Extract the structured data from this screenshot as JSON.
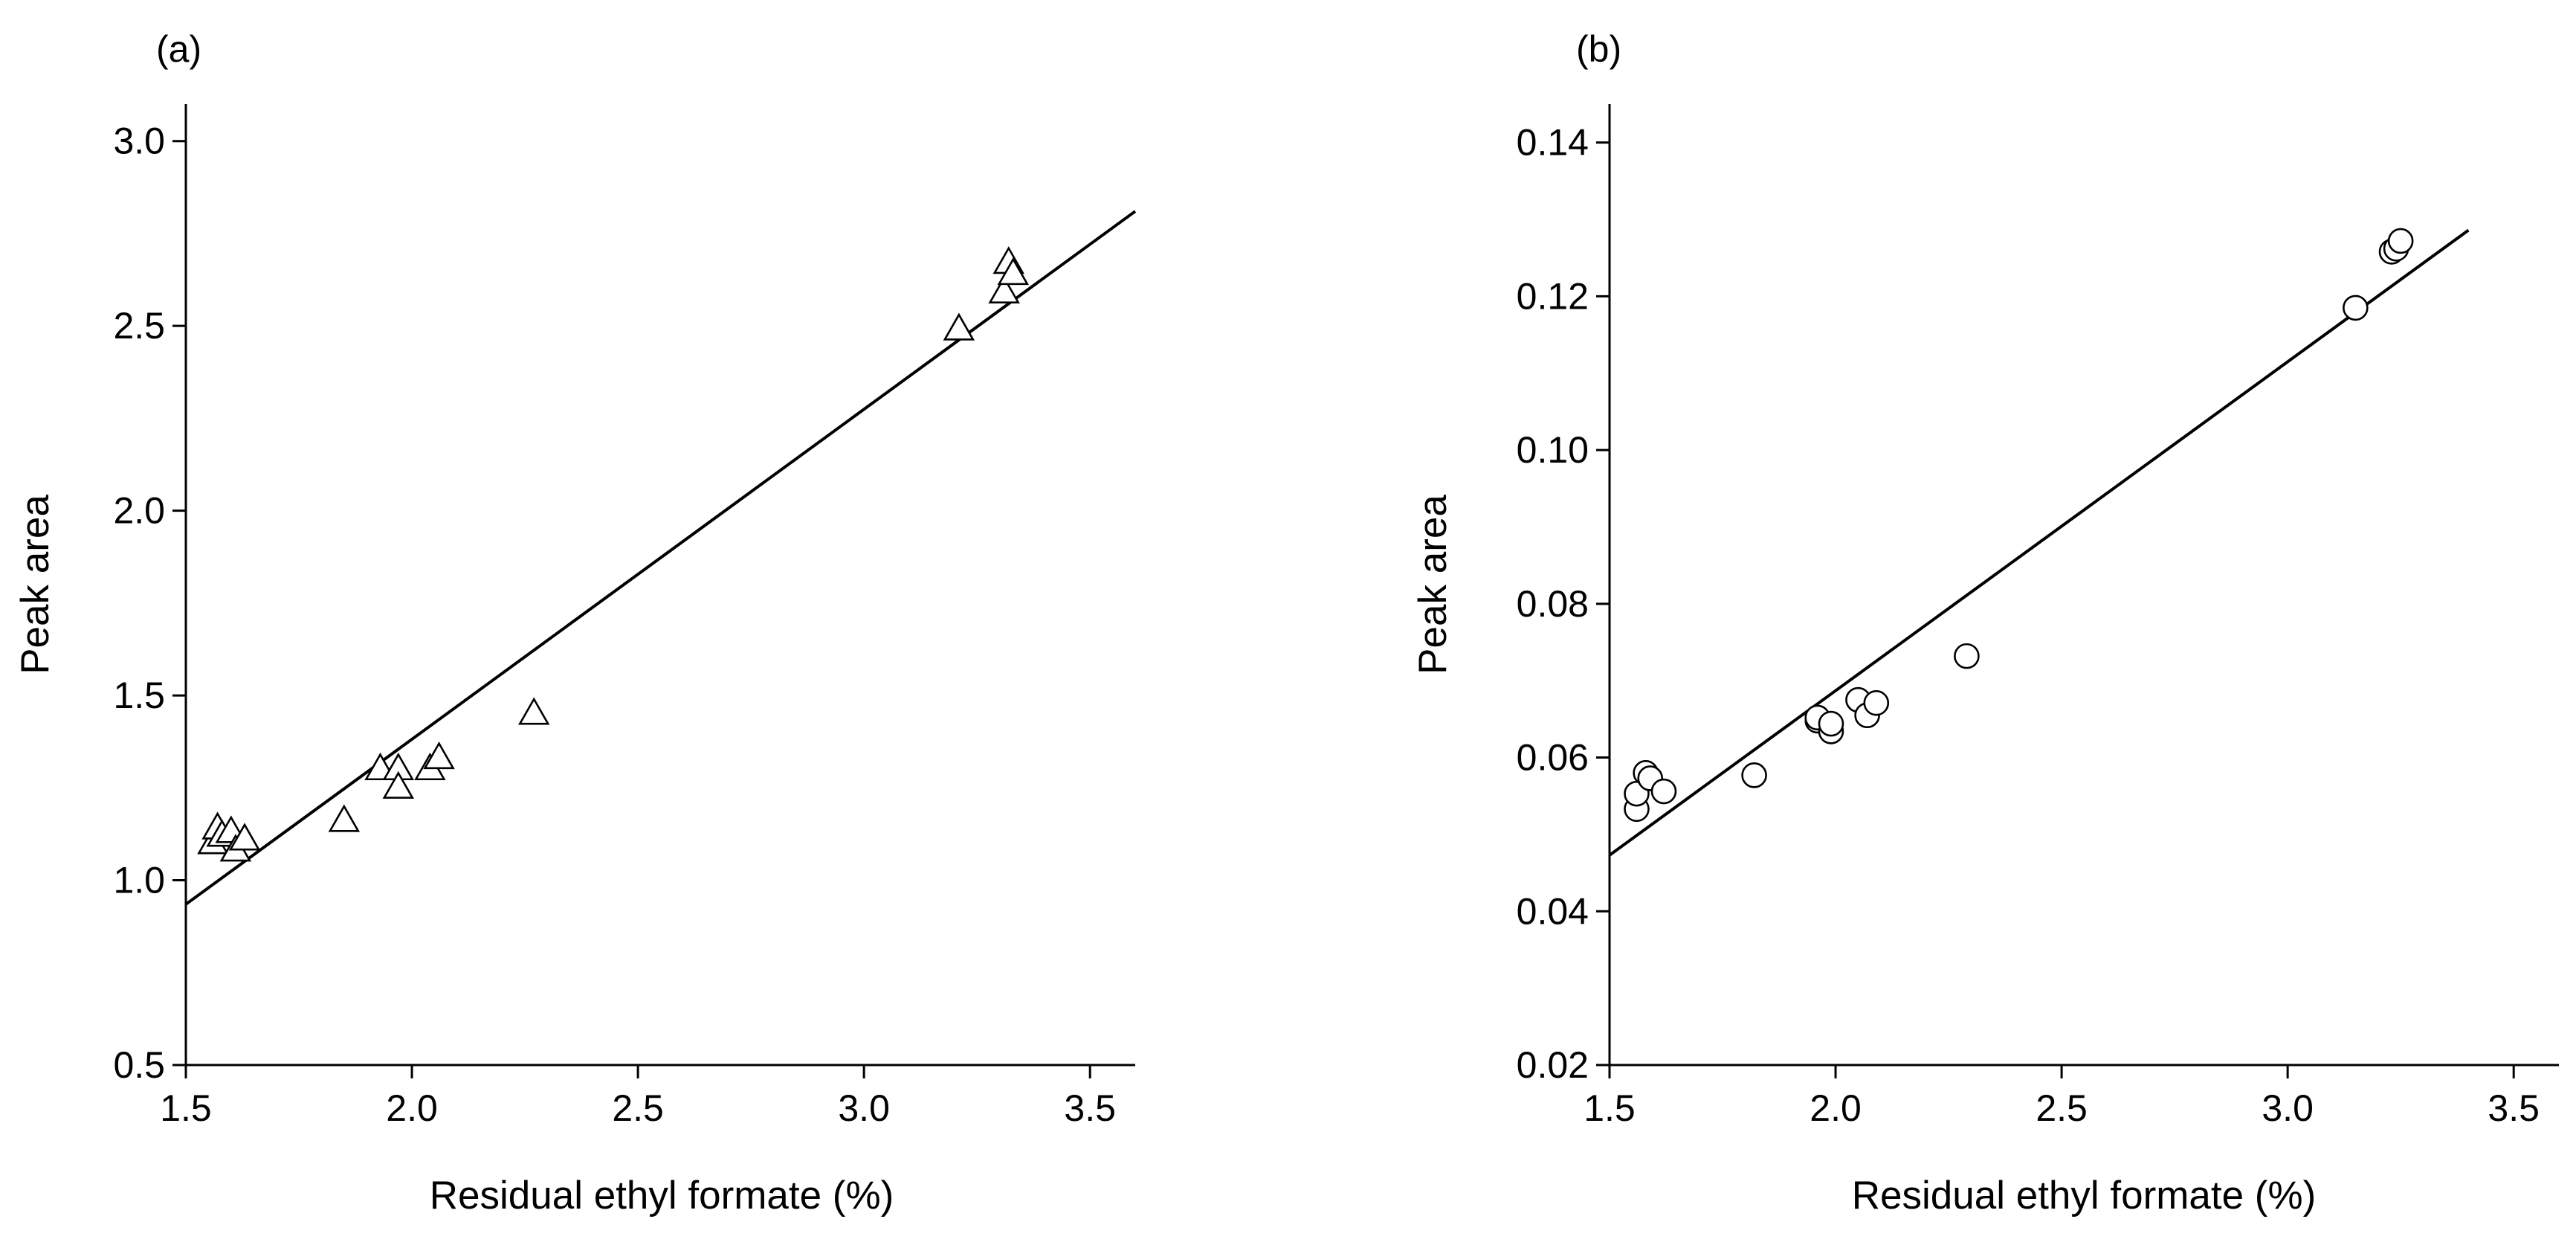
{
  "chart_data": [
    {
      "panel_label": "(a)",
      "type": "scatter",
      "marker": "triangle",
      "xlabel": "Residual ethyl formate (%)",
      "ylabel": "Peak area",
      "xlim": [
        1.5,
        3.6
      ],
      "ylim": [
        0.5,
        3.1
      ],
      "xticks": [
        1.5,
        2.0,
        2.5,
        3.0,
        3.5
      ],
      "yticks": [
        0.5,
        1.0,
        1.5,
        2.0,
        2.5,
        3.0
      ],
      "xtick_labels": [
        "1.5",
        "2.0",
        "2.5",
        "3.0",
        "3.5"
      ],
      "ytick_labels": [
        "0.5",
        "1.0",
        "1.5",
        "2.0",
        "2.5",
        "3.0"
      ],
      "points": [
        {
          "x": 1.56,
          "y": 1.1
        },
        {
          "x": 1.57,
          "y": 1.14
        },
        {
          "x": 1.58,
          "y": 1.12
        },
        {
          "x": 1.6,
          "y": 1.13
        },
        {
          "x": 1.61,
          "y": 1.08
        },
        {
          "x": 1.63,
          "y": 1.11
        },
        {
          "x": 1.85,
          "y": 1.16
        },
        {
          "x": 1.93,
          "y": 1.3
        },
        {
          "x": 1.97,
          "y": 1.3
        },
        {
          "x": 1.97,
          "y": 1.25
        },
        {
          "x": 2.04,
          "y": 1.3
        },
        {
          "x": 2.06,
          "y": 1.33
        },
        {
          "x": 2.27,
          "y": 1.45
        },
        {
          "x": 3.21,
          "y": 2.49
        },
        {
          "x": 3.31,
          "y": 2.59
        },
        {
          "x": 3.32,
          "y": 2.67
        },
        {
          "x": 3.33,
          "y": 2.64
        }
      ],
      "fit_line": {
        "x": [
          1.5,
          3.6
        ],
        "y": [
          0.935,
          2.81
        ]
      }
    },
    {
      "panel_label": "(b)",
      "type": "scatter",
      "marker": "circle",
      "xlabel": "Residual ethyl formate (%)",
      "ylabel": "Peak area",
      "xlim": [
        1.5,
        3.6
      ],
      "ylim": [
        0.02,
        0.145
      ],
      "xticks": [
        1.5,
        2.0,
        2.5,
        3.0,
        3.5
      ],
      "yticks": [
        0.02,
        0.04,
        0.06,
        0.08,
        0.1,
        0.12,
        0.14
      ],
      "xtick_labels": [
        "1.5",
        "2.0",
        "2.5",
        "3.0",
        "3.5"
      ],
      "ytick_labels": [
        "0.02",
        "0.04",
        "0.06",
        "0.08",
        "0.10",
        "0.12",
        "0.14"
      ],
      "points": [
        {
          "x": 1.56,
          "y": 0.0533
        },
        {
          "x": 1.56,
          "y": 0.0553
        },
        {
          "x": 1.58,
          "y": 0.058
        },
        {
          "x": 1.59,
          "y": 0.0573
        },
        {
          "x": 1.62,
          "y": 0.0556
        },
        {
          "x": 1.82,
          "y": 0.0577
        },
        {
          "x": 1.96,
          "y": 0.0648
        },
        {
          "x": 1.96,
          "y": 0.0652
        },
        {
          "x": 1.99,
          "y": 0.0634
        },
        {
          "x": 1.99,
          "y": 0.0644
        },
        {
          "x": 2.05,
          "y": 0.0675
        },
        {
          "x": 2.07,
          "y": 0.0655
        },
        {
          "x": 2.09,
          "y": 0.0671
        },
        {
          "x": 2.29,
          "y": 0.0732
        },
        {
          "x": 3.15,
          "y": 0.1185
        },
        {
          "x": 3.23,
          "y": 0.1258
        },
        {
          "x": 3.24,
          "y": 0.1262
        },
        {
          "x": 3.25,
          "y": 0.1272
        }
      ],
      "fit_line": {
        "x": [
          1.5,
          3.4
        ],
        "y": [
          0.0473,
          0.1286
        ]
      }
    }
  ]
}
